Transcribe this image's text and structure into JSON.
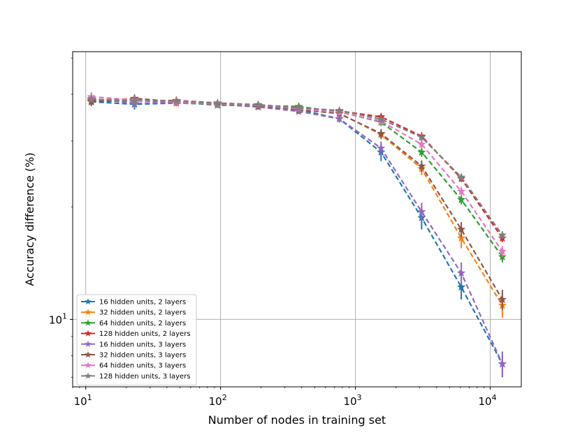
{
  "chart_data": {
    "type": "line",
    "title": "",
    "xlabel": "Number of nodes in training set",
    "ylabel": "Accuracy difference (%)",
    "xscale": "log",
    "yscale": "log",
    "xlim": [
      8,
      17000
    ],
    "ylim": [
      6.6,
      52
    ],
    "grid": true,
    "legend_position": "bottom-left",
    "x_ticks": [
      {
        "value": 10,
        "base": "10",
        "exp": "1"
      },
      {
        "value": 100,
        "base": "10",
        "exp": "2"
      },
      {
        "value": 1000,
        "base": "10",
        "exp": "3"
      },
      {
        "value": 10000,
        "base": "10",
        "exp": "4"
      }
    ],
    "y_ticks": [
      {
        "value": 10,
        "base": "10",
        "exp": "1"
      }
    ],
    "series": [
      {
        "name": "16 hidden units, 2 layers",
        "color": "#1f77b4",
        "x": [
          11,
          23,
          47,
          95,
          190,
          380,
          760,
          1550,
          3100,
          6100,
          12300
        ],
        "y": [
          38.2,
          37.6,
          37.9,
          37.6,
          37.1,
          36.4,
          34.4,
          28.0,
          18.7,
          12.2,
          7.6
        ],
        "err": [
          0.9,
          1.2,
          0.8,
          0.6,
          0.6,
          0.6,
          0.8,
          1.5,
          1.3,
          0.9,
          0.6
        ]
      },
      {
        "name": "32 hidden units, 2 layers",
        "color": "#ff7f0e",
        "x": [
          11,
          23,
          47,
          95,
          190,
          380,
          760,
          1550,
          3100,
          6100,
          12300
        ],
        "y": [
          38.6,
          38.9,
          37.9,
          37.8,
          37.4,
          36.6,
          35.6,
          31.2,
          25.3,
          16.5,
          10.9
        ],
        "err": [
          0.9,
          0.9,
          0.8,
          0.6,
          0.6,
          0.6,
          0.7,
          0.9,
          1.0,
          1.0,
          0.8
        ]
      },
      {
        "name": "64 hidden units, 2 layers",
        "color": "#2ca02c",
        "x": [
          11,
          23,
          47,
          95,
          190,
          380,
          760,
          1550,
          3100,
          6100,
          12300
        ],
        "y": [
          38.5,
          38.5,
          38.1,
          37.4,
          37.3,
          37.1,
          35.9,
          33.7,
          28.0,
          20.9,
          14.7
        ],
        "err": [
          0.8,
          0.8,
          0.7,
          0.6,
          0.6,
          0.6,
          0.7,
          0.8,
          0.8,
          0.6,
          0.5
        ]
      },
      {
        "name": "128 hidden units, 2 layers",
        "color": "#d62728",
        "x": [
          11,
          23,
          47,
          95,
          190,
          380,
          760,
          1550,
          3100,
          6100,
          12300
        ],
        "y": [
          38.3,
          38.4,
          38.5,
          37.9,
          37.5,
          36.8,
          36.1,
          34.8,
          30.9,
          23.8,
          16.5
        ],
        "err": [
          0.8,
          0.8,
          0.7,
          0.6,
          0.6,
          0.6,
          0.6,
          0.7,
          0.7,
          0.5,
          0.4
        ]
      },
      {
        "name": "16 hidden units, 3 layers",
        "color": "#9467bd",
        "x": [
          11,
          23,
          47,
          95,
          190,
          380,
          760,
          1550,
          3100,
          6100,
          12300
        ],
        "y": [
          39.0,
          37.8,
          38.1,
          37.6,
          37.0,
          36.0,
          34.4,
          28.7,
          19.4,
          13.3,
          7.6
        ],
        "err": [
          1.2,
          0.9,
          0.8,
          0.6,
          0.6,
          0.6,
          0.8,
          1.2,
          1.1,
          0.9,
          0.6
        ]
      },
      {
        "name": "32 hidden units, 3 layers",
        "color": "#8c564b",
        "x": [
          11,
          23,
          47,
          95,
          190,
          380,
          760,
          1550,
          3100,
          6100,
          12300
        ],
        "y": [
          38.2,
          39.0,
          38.2,
          37.7,
          37.2,
          36.4,
          35.5,
          31.4,
          25.7,
          17.4,
          11.3
        ],
        "err": [
          1.0,
          0.9,
          0.8,
          0.6,
          0.6,
          0.6,
          0.7,
          0.9,
          0.9,
          0.8,
          0.7
        ]
      },
      {
        "name": "64 hidden units, 3 layers",
        "color": "#e377c2",
        "x": [
          11,
          23,
          47,
          95,
          190,
          380,
          760,
          1550,
          3100,
          6100,
          12300
        ],
        "y": [
          39.4,
          38.6,
          38.2,
          37.7,
          37.4,
          36.6,
          35.8,
          33.9,
          29.4,
          22.0,
          15.2
        ],
        "err": [
          1.1,
          0.8,
          0.7,
          0.6,
          0.6,
          0.6,
          0.7,
          0.7,
          0.7,
          0.6,
          0.5
        ]
      },
      {
        "name": "128 hidden units, 3 layers",
        "color": "#7f7f7f",
        "x": [
          11,
          23,
          47,
          95,
          190,
          380,
          760,
          1550,
          3100,
          6100,
          12300
        ],
        "y": [
          38.8,
          38.4,
          38.4,
          37.8,
          37.5,
          36.8,
          36.2,
          34.3,
          30.7,
          24.0,
          16.8
        ],
        "err": [
          0.8,
          0.8,
          0.7,
          0.6,
          0.6,
          0.6,
          0.6,
          0.7,
          0.7,
          0.5,
          0.4
        ]
      }
    ]
  }
}
